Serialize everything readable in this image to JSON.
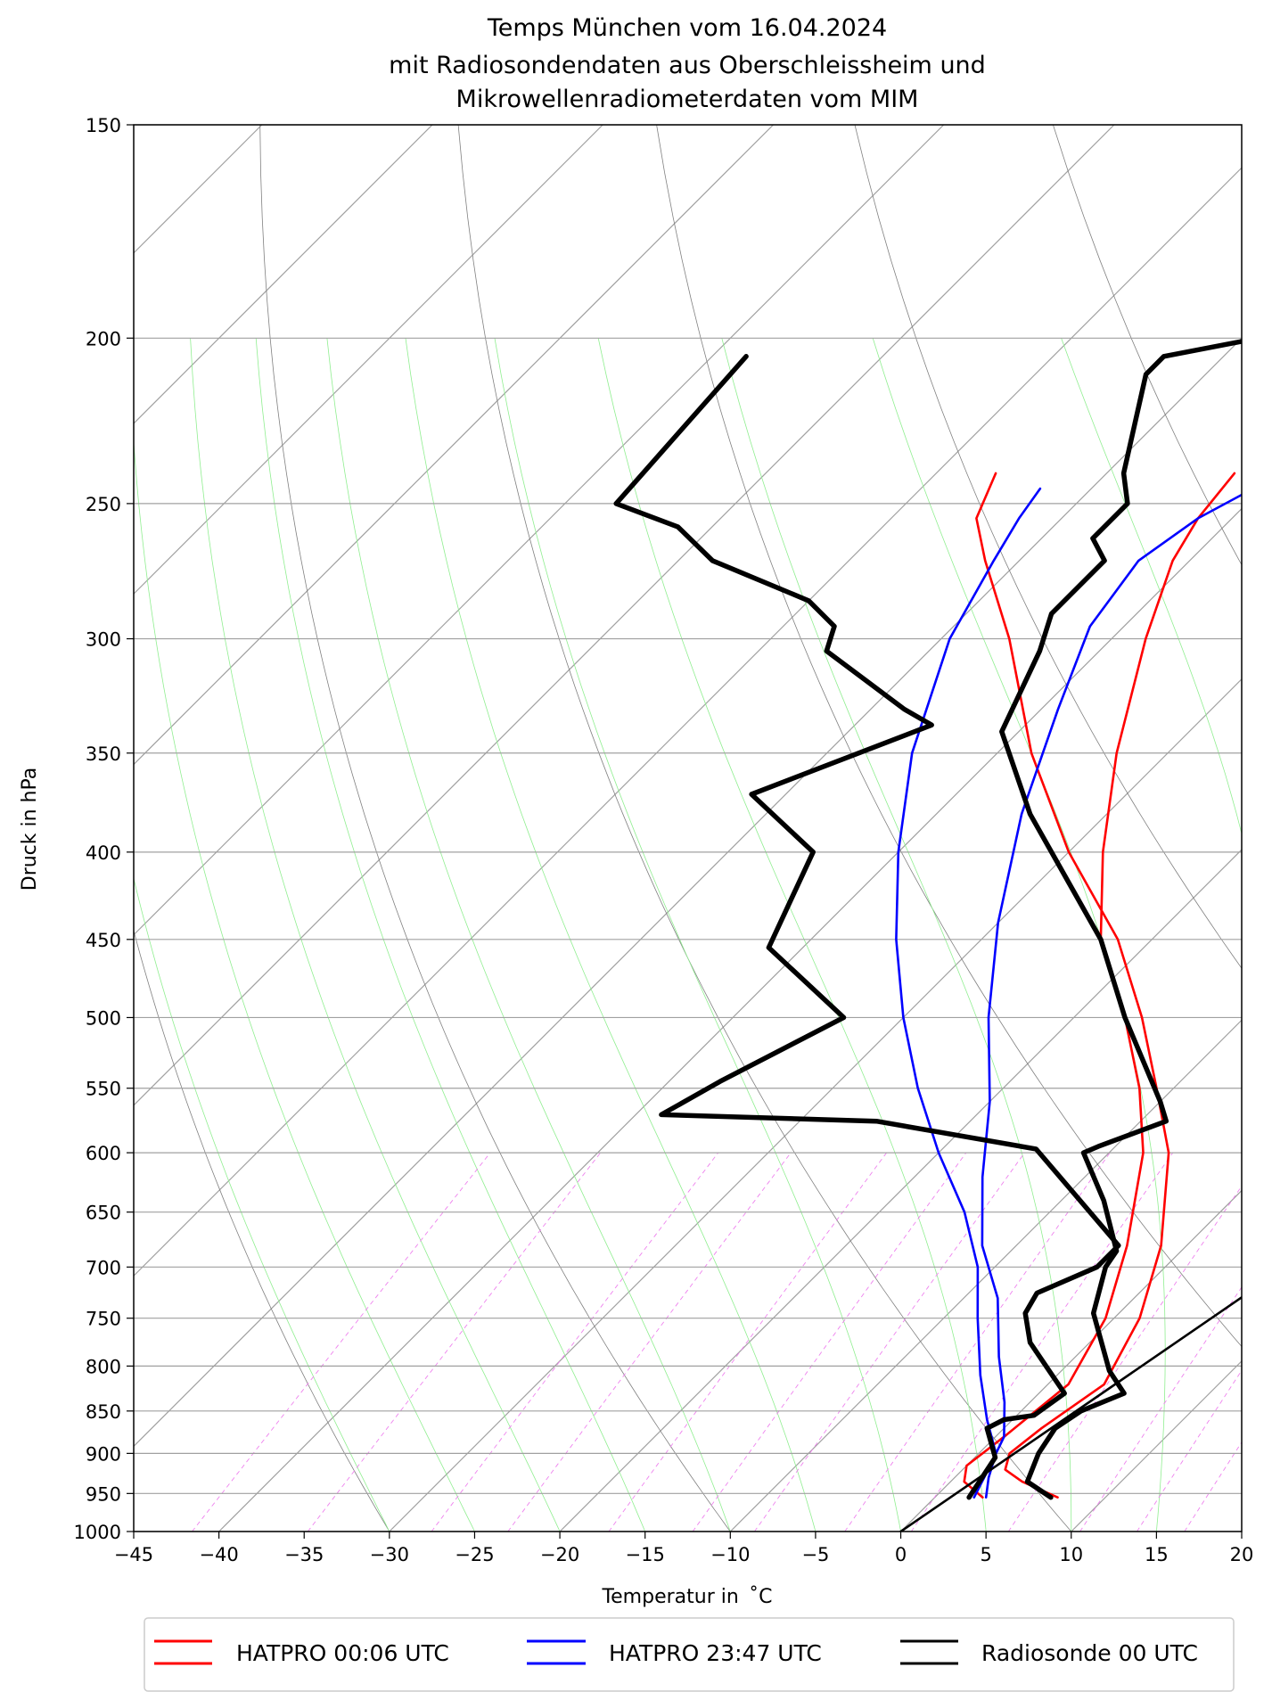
{
  "chart_data": {
    "type": "line",
    "title": [
      "Temps München vom 16.04.2024",
      "mit Radiosondendaten aus Oberschleissheim und",
      "Mikrowellenradiometerdaten vom MIM"
    ],
    "xlabel": "Temperatur in  ˚C",
    "ylabel": "Druck in hPa",
    "xlim": [
      -45,
      20
    ],
    "ylim": [
      1000,
      150
    ],
    "y_scale": "log",
    "x_ticks": [
      "−45",
      "−40",
      "−35",
      "−30",
      "−25",
      "−20",
      "−15",
      "−10",
      "−5",
      "0",
      "5",
      "10",
      "15",
      "20"
    ],
    "x_tick_values": [
      -45,
      -40,
      -35,
      -30,
      -25,
      -20,
      -15,
      -10,
      -5,
      0,
      5,
      10,
      15,
      20
    ],
    "y_ticks": [
      "1000",
      "950",
      "900",
      "850",
      "800",
      "750",
      "700",
      "650",
      "600",
      "550",
      "500",
      "450",
      "400",
      "350",
      "300",
      "250",
      "200",
      "150"
    ],
    "y_tick_values": [
      1000,
      950,
      900,
      850,
      800,
      750,
      700,
      650,
      600,
      550,
      500,
      450,
      400,
      350,
      300,
      250,
      200,
      150
    ],
    "skew_degrees": 45,
    "background_lines": {
      "isotherms_color": "#a0a0a0",
      "dry_adiabats_color": "#808080",
      "moist_adiabats_color": "#90ee90",
      "mixing_ratio_color": "#ee82ee"
    },
    "legend": {
      "placement": "bottom-outside",
      "entries": [
        {
          "label": "HATPRO 00:06 UTC",
          "color": "#ff0000"
        },
        {
          "label": "HATPRO 23:47 UTC",
          "color": "#0000ff"
        },
        {
          "label": "Radiosonde 00 UTC",
          "color": "#000000"
        }
      ]
    },
    "series": [
      {
        "name": "HATPRO 00:06 UTC",
        "kind": "temperature",
        "color": "#ff0000",
        "points": [
          [
            7.2,
            955
          ],
          [
            4.2,
            935
          ],
          [
            2.5,
            920
          ],
          [
            1.8,
            900
          ],
          [
            2.2,
            870
          ],
          [
            3.3,
            820
          ],
          [
            1.5,
            750
          ],
          [
            -1.5,
            680
          ],
          [
            -6.5,
            600
          ],
          [
            -11,
            550
          ],
          [
            -16,
            500
          ],
          [
            -22,
            450
          ],
          [
            -30,
            400
          ],
          [
            -38,
            350
          ],
          [
            -46,
            300
          ],
          [
            -52,
            270
          ],
          [
            -55,
            255
          ],
          [
            -56.5,
            240
          ]
        ]
      },
      {
        "name": "HATPRO 00:06 UTC",
        "kind": "dewpoint",
        "color": "#ff0000",
        "points": [
          [
            2.8,
            955
          ],
          [
            0.8,
            935
          ],
          [
            0,
            915
          ],
          [
            0.5,
            880
          ],
          [
            1.2,
            820
          ],
          [
            -0.5,
            750
          ],
          [
            -3.5,
            680
          ],
          [
            -8,
            600
          ],
          [
            -12,
            550
          ],
          [
            -17,
            500
          ],
          [
            -23,
            450
          ],
          [
            -28,
            400
          ],
          [
            -33,
            350
          ],
          [
            -38,
            300
          ],
          [
            -41,
            270
          ],
          [
            -42,
            255
          ],
          [
            -42.5,
            240
          ]
        ]
      },
      {
        "name": "HATPRO 23:47 UTC",
        "kind": "temperature",
        "color": "#0000ff",
        "points": [
          [
            3.0,
            955
          ],
          [
            2.0,
            930
          ],
          [
            1.0,
            900
          ],
          [
            -1.5,
            860
          ],
          [
            -4.5,
            810
          ],
          [
            -8,
            750
          ],
          [
            -11,
            700
          ],
          [
            -15,
            650
          ],
          [
            -20,
            600
          ],
          [
            -25,
            550
          ],
          [
            -30,
            500
          ],
          [
            -35,
            450
          ],
          [
            -40,
            400
          ],
          [
            -45,
            350
          ],
          [
            -49.5,
            300
          ],
          [
            -51.5,
            270
          ],
          [
            -52.5,
            255
          ],
          [
            -53,
            245
          ]
        ]
      },
      {
        "name": "HATPRO 23:47 UTC",
        "kind": "dewpoint",
        "color": "#0000ff",
        "points": [
          [
            2.3,
            955
          ],
          [
            1.5,
            920
          ],
          [
            0.5,
            880
          ],
          [
            -1.5,
            840
          ],
          [
            -4.5,
            790
          ],
          [
            -8,
            730
          ],
          [
            -12,
            680
          ],
          [
            -16,
            620
          ],
          [
            -20,
            560
          ],
          [
            -25,
            500
          ],
          [
            -30,
            440
          ],
          [
            -35,
            380
          ],
          [
            -39,
            330
          ],
          [
            -42,
            295
          ],
          [
            -43,
            270
          ],
          [
            -42,
            255
          ],
          [
            -40.5,
            245
          ]
        ]
      },
      {
        "name": "Radiosonde 00 UTC",
        "kind": "temperature",
        "color": "#000000",
        "points": [
          [
            6.8,
            955
          ],
          [
            4.5,
            935
          ],
          [
            3.5,
            900
          ],
          [
            3.0,
            870
          ],
          [
            3.5,
            850
          ],
          [
            5.0,
            830
          ],
          [
            2.8,
            805
          ],
          [
            -1.5,
            745
          ],
          [
            -3.5,
            700
          ],
          [
            -3.8,
            685
          ],
          [
            -7.5,
            640
          ],
          [
            -11.5,
            600
          ],
          [
            -11,
            595
          ],
          [
            -8.5,
            575
          ],
          [
            -10,
            560
          ],
          [
            -17,
            500
          ],
          [
            -23,
            450
          ],
          [
            -34.5,
            380
          ],
          [
            -41,
            340
          ],
          [
            -43.5,
            305
          ],
          [
            -45,
            290
          ],
          [
            -45,
            270
          ],
          [
            -47,
            262
          ],
          [
            -47,
            250
          ],
          [
            -49,
            240
          ],
          [
            -53.5,
            210
          ],
          [
            -53.5,
            205
          ],
          [
            -49,
            200
          ],
          [
            -48.5,
            186
          ],
          [
            -50,
            150
          ]
        ]
      },
      {
        "name": "Radiosonde 00 UTC",
        "kind": "dewpoint",
        "color": "#000000",
        "points": [
          [
            2.0,
            955
          ],
          [
            1.2,
            905
          ],
          [
            -1.0,
            870
          ],
          [
            -0.5,
            860
          ],
          [
            1.0,
            855
          ],
          [
            1.5,
            830
          ],
          [
            -3.5,
            775
          ],
          [
            -5.5,
            745
          ],
          [
            -6,
            725
          ],
          [
            -4,
            700
          ],
          [
            -4,
            680
          ],
          [
            -14.5,
            597
          ],
          [
            -25.5,
            575
          ],
          [
            -38.5,
            570
          ],
          [
            -37,
            545
          ],
          [
            -33.5,
            500
          ],
          [
            -42,
            455
          ],
          [
            -45,
            400
          ],
          [
            -52,
            370
          ],
          [
            -45.5,
            337
          ],
          [
            -48,
            330
          ],
          [
            -56,
            305
          ],
          [
            -57,
            295
          ],
          [
            -60,
            285
          ],
          [
            -68,
            270
          ],
          [
            -72,
            258
          ],
          [
            -77,
            250
          ],
          [
            -78,
            205
          ]
        ]
      },
      {
        "name": "Radiosonde 00 UTC",
        "kind": "parcel",
        "color": "#000000",
        "points": [
          [
            0,
            1000
          ],
          [
            20,
            365
          ]
        ]
      }
    ]
  }
}
